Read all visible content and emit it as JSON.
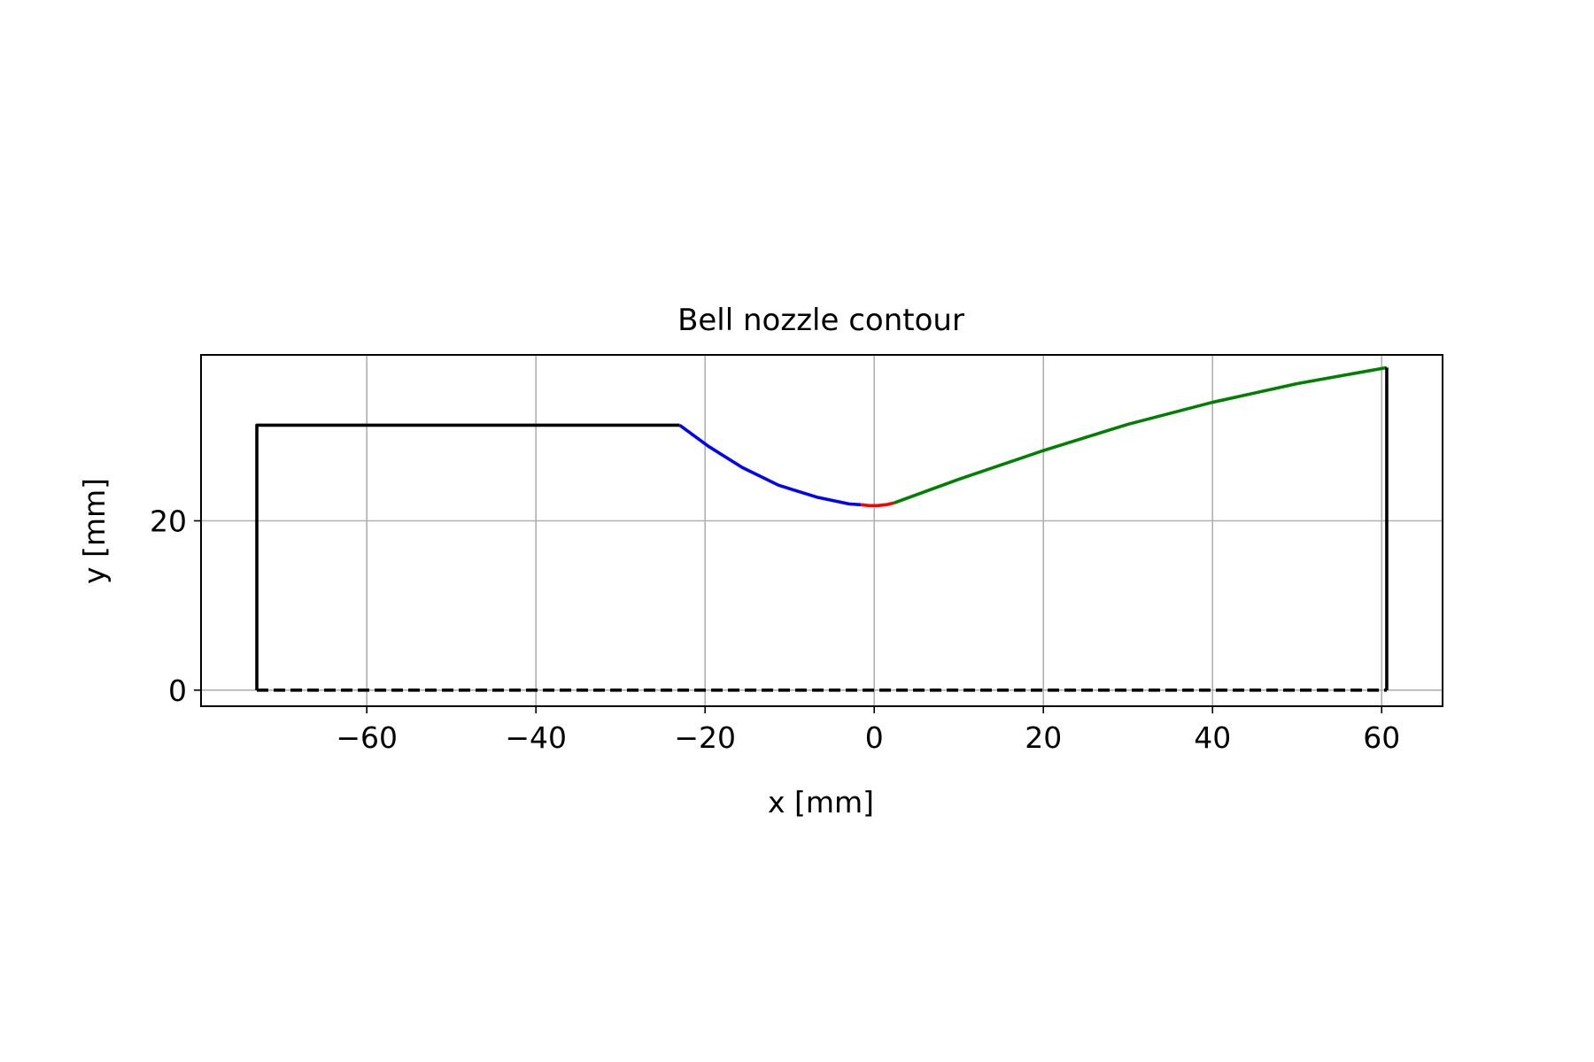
{
  "chart_data": {
    "type": "line",
    "title": "Bell nozzle contour",
    "xlabel": "x [mm]",
    "ylabel": "y [mm]",
    "xlim": [
      -79.6,
      67.2
    ],
    "ylim": [
      -1.9,
      39.6
    ],
    "xticks": [
      -60,
      -40,
      -20,
      0,
      20,
      40,
      60
    ],
    "yticks": [
      0,
      20
    ],
    "xtick_labels": [
      "−60",
      "−40",
      "−20",
      "0",
      "20",
      "40",
      "60"
    ],
    "ytick_labels": [
      "0",
      "20"
    ],
    "grid": true,
    "legend": "none",
    "series": [
      {
        "color": "#000000",
        "style": "solid",
        "points": [
          [
            -73.0,
            0.0
          ],
          [
            -73.0,
            31.3
          ],
          [
            -23.0,
            31.3
          ]
        ]
      },
      {
        "color": "#0000ff",
        "style": "solid",
        "points": [
          [
            -23.0,
            31.3
          ],
          [
            -19.6,
            28.8
          ],
          [
            -15.6,
            26.3
          ],
          [
            -11.3,
            24.2
          ],
          [
            -6.8,
            22.8
          ],
          [
            -3.0,
            22.0
          ],
          [
            -1.6,
            21.9
          ]
        ]
      },
      {
        "color": "#ff0000",
        "style": "solid",
        "points": [
          [
            -1.6,
            21.9
          ],
          [
            -0.6,
            21.8
          ],
          [
            0.4,
            21.8
          ],
          [
            1.4,
            21.9
          ],
          [
            2.3,
            22.1
          ]
        ]
      },
      {
        "color": "#008000",
        "style": "solid",
        "points": [
          [
            2.3,
            22.1
          ],
          [
            10.0,
            24.9
          ],
          [
            20.0,
            28.3
          ],
          [
            30.0,
            31.4
          ],
          [
            40.0,
            34.0
          ],
          [
            50.0,
            36.2
          ],
          [
            60.6,
            38.1
          ]
        ]
      },
      {
        "color": "#000000",
        "style": "solid",
        "points": [
          [
            60.6,
            38.1
          ],
          [
            60.6,
            0.0
          ]
        ]
      },
      {
        "color": "#000000",
        "style": "dashed",
        "points": [
          [
            -73.0,
            0.0
          ],
          [
            60.6,
            0.0
          ]
        ]
      }
    ]
  }
}
